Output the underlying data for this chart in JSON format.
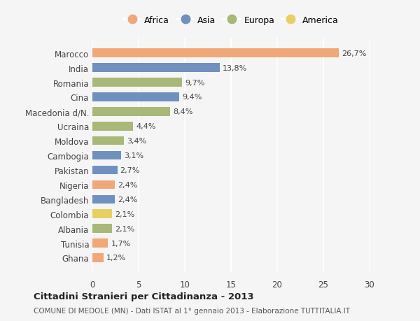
{
  "countries": [
    "Marocco",
    "India",
    "Romania",
    "Cina",
    "Macedonia d/N.",
    "Ucraina",
    "Moldova",
    "Cambogia",
    "Pakistan",
    "Nigeria",
    "Bangladesh",
    "Colombia",
    "Albania",
    "Tunisia",
    "Ghana"
  ],
  "values": [
    26.7,
    13.8,
    9.7,
    9.4,
    8.4,
    4.4,
    3.4,
    3.1,
    2.7,
    2.4,
    2.4,
    2.1,
    2.1,
    1.7,
    1.2
  ],
  "labels": [
    "26,7%",
    "13,8%",
    "9,7%",
    "9,4%",
    "8,4%",
    "4,4%",
    "3,4%",
    "3,1%",
    "2,7%",
    "2,4%",
    "2,4%",
    "2,1%",
    "2,1%",
    "1,7%",
    "1,2%"
  ],
  "continents": [
    "Africa",
    "Asia",
    "Europa",
    "Asia",
    "Europa",
    "Europa",
    "Europa",
    "Asia",
    "Asia",
    "Africa",
    "Asia",
    "America",
    "Europa",
    "Africa",
    "Africa"
  ],
  "colors": {
    "Africa": "#F0A878",
    "Asia": "#7090C0",
    "Europa": "#A8B878",
    "America": "#E8D060"
  },
  "legend_order": [
    "Africa",
    "Asia",
    "Europa",
    "America"
  ],
  "title": "Cittadini Stranieri per Cittadinanza - 2013",
  "subtitle": "COMUNE DI MEDOLE (MN) - Dati ISTAT al 1° gennaio 2013 - Elaborazione TUTTITALIA.IT",
  "xlim": [
    0,
    30
  ],
  "xticks": [
    0,
    5,
    10,
    15,
    20,
    25,
    30
  ],
  "background_color": "#f5f5f5",
  "bar_height": 0.6
}
